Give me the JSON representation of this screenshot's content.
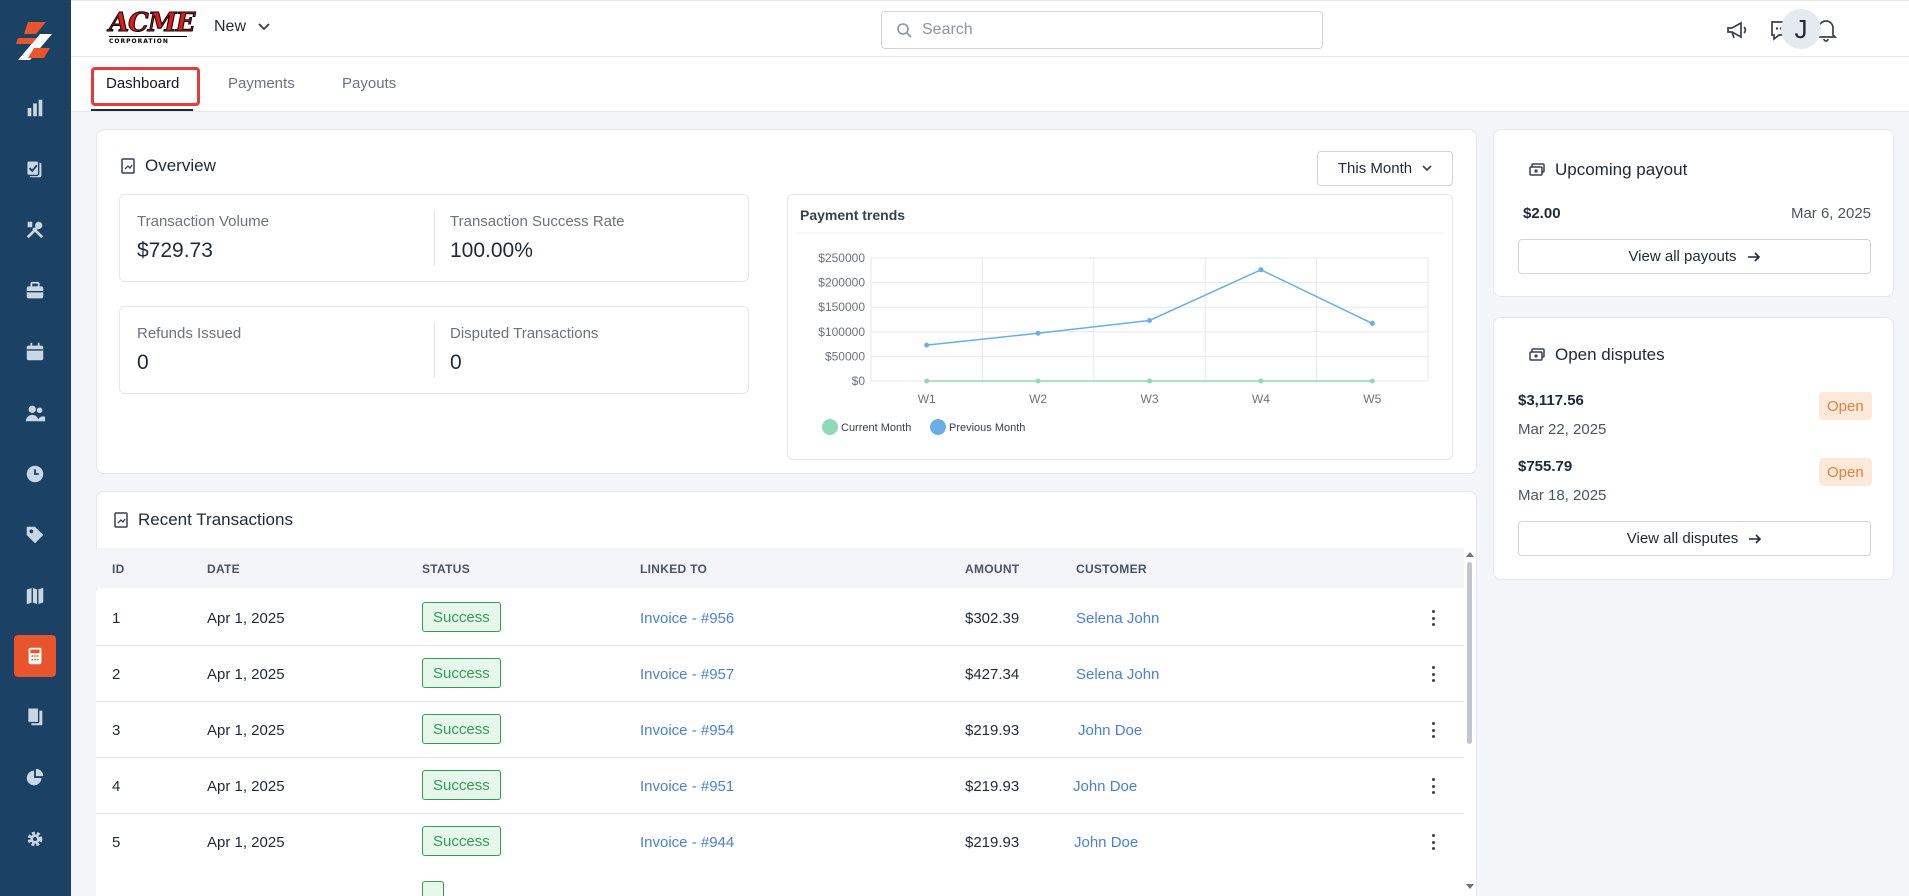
{
  "colors": {
    "sidebar": "#1b4264",
    "accent": "#e8542b",
    "success": "#2f9e54",
    "link": "#4c7fd3",
    "open": "#e0813f"
  },
  "sidebar": {
    "items": [
      {
        "icon": "bar-chart-icon"
      },
      {
        "icon": "clipboard-check-icon"
      },
      {
        "icon": "tools-icon"
      },
      {
        "icon": "briefcase-icon"
      },
      {
        "icon": "calendar-icon"
      },
      {
        "icon": "users-icon"
      },
      {
        "icon": "clock-icon"
      },
      {
        "icon": "tag-icon"
      },
      {
        "icon": "map-icon"
      },
      {
        "icon": "calculator-icon",
        "active": true
      },
      {
        "icon": "documents-icon"
      },
      {
        "icon": "pie-chart-icon"
      },
      {
        "icon": "gear-icon"
      }
    ]
  },
  "header": {
    "brand_top": "ACME",
    "brand_bottom": "CORPORATION",
    "new_label": "New",
    "search_placeholder": "Search",
    "avatar_initial": "J"
  },
  "tabs": [
    {
      "label": "Dashboard",
      "active": true
    },
    {
      "label": "Payments"
    },
    {
      "label": "Payouts"
    }
  ],
  "overview": {
    "title": "Overview",
    "period": "This Month",
    "stats": [
      {
        "label": "Transaction Volume",
        "value": "$729.73"
      },
      {
        "label": "Transaction Success Rate",
        "value": "100.00%"
      },
      {
        "label": "Refunds Issued",
        "value": "0"
      },
      {
        "label": "Disputed Transactions",
        "value": "0"
      }
    ]
  },
  "chart_data": {
    "type": "line",
    "title": "Payment trends",
    "categories": [
      "W1",
      "W2",
      "W3",
      "W4",
      "W5"
    ],
    "y_ticks": [
      "$250000",
      "$200000",
      "$150000",
      "$100000",
      "$50000",
      "$0"
    ],
    "ylim": [
      0,
      250000
    ],
    "series": [
      {
        "name": "Current Month",
        "color": "#8fd9b6",
        "values": [
          0,
          0,
          0,
          0,
          0
        ]
      },
      {
        "name": "Previous Month",
        "color": "#6aaee8",
        "values": [
          73000,
          97000,
          123000,
          226000,
          117000
        ]
      }
    ],
    "legend": "bottom-left",
    "grid": true
  },
  "transactions": {
    "title": "Recent Transactions",
    "columns": [
      "ID",
      "DATE",
      "STATUS",
      "LINKED TO",
      "AMOUNT",
      "CUSTOMER"
    ],
    "rows": [
      {
        "id": "1",
        "date": "Apr 1, 2025",
        "status": "Success",
        "linked": "Invoice - #956",
        "amount": "$302.39",
        "customer": "Selena John"
      },
      {
        "id": "2",
        "date": "Apr 1, 2025",
        "status": "Success",
        "linked": "Invoice - #957",
        "amount": "$427.34",
        "customer": "Selena John"
      },
      {
        "id": "3",
        "date": "Apr 1, 2025",
        "status": "Success",
        "linked": "Invoice - #954",
        "amount": "$219.93",
        "customer": "John Doe"
      },
      {
        "id": "4",
        "date": "Apr 1, 2025",
        "status": "Success",
        "linked": "Invoice - #951",
        "amount": "$219.93",
        "customer": "John Doe"
      },
      {
        "id": "5",
        "date": "Apr 1, 2025",
        "status": "Success",
        "linked": "Invoice - #944",
        "amount": "$219.93",
        "customer": "John Doe"
      }
    ]
  },
  "upcoming_payout": {
    "title": "Upcoming payout",
    "amount": "$2.00",
    "date": "Mar 6, 2025",
    "button": "View all payouts"
  },
  "open_disputes": {
    "title": "Open disputes",
    "items": [
      {
        "amount": "$3,117.56",
        "date": "Mar 22, 2025",
        "status": "Open"
      },
      {
        "amount": "$755.79",
        "date": "Mar 18, 2025",
        "status": "Open"
      }
    ],
    "button": "View all disputes"
  }
}
